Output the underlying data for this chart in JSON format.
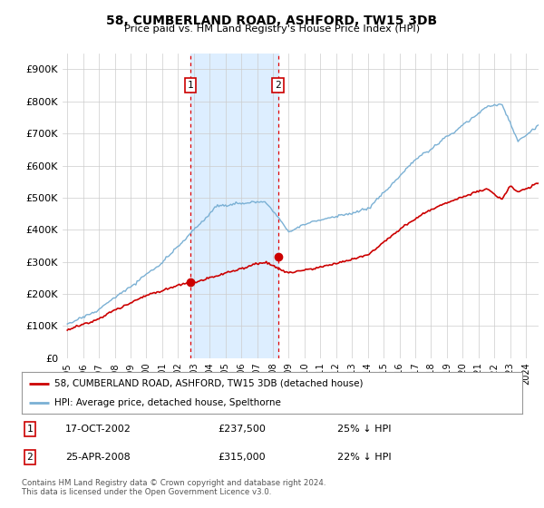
{
  "title": "58, CUMBERLAND ROAD, ASHFORD, TW15 3DB",
  "subtitle": "Price paid vs. HM Land Registry's House Price Index (HPI)",
  "background_color": "#ffffff",
  "plot_bg_color": "#ffffff",
  "grid_color": "#cccccc",
  "sale1": {
    "date_num": 2002.79,
    "price": 237500,
    "label": "1"
  },
  "sale2": {
    "date_num": 2008.32,
    "price": 315000,
    "label": "2"
  },
  "shade_start": 2002.79,
  "shade_end": 2008.32,
  "shade_color": "#ddeeff",
  "red_line_color": "#cc0000",
  "blue_line_color": "#7ab0d4",
  "legend_red_label": "58, CUMBERLAND ROAD, ASHFORD, TW15 3DB (detached house)",
  "legend_blue_label": "HPI: Average price, detached house, Spelthorne",
  "table_rows": [
    {
      "label": "1",
      "date": "17-OCT-2002",
      "price": "£237,500",
      "pct": "25% ↓ HPI"
    },
    {
      "label": "2",
      "date": "25-APR-2008",
      "price": "£315,000",
      "pct": "22% ↓ HPI"
    }
  ],
  "footnote": "Contains HM Land Registry data © Crown copyright and database right 2024.\nThis data is licensed under the Open Government Licence v3.0.",
  "ylim": [
    0,
    950000
  ],
  "yticks": [
    0,
    100000,
    200000,
    300000,
    400000,
    500000,
    600000,
    700000,
    800000,
    900000
  ],
  "ytick_labels": [
    "£0",
    "£100K",
    "£200K",
    "£300K",
    "£400K",
    "£500K",
    "£600K",
    "£700K",
    "£800K",
    "£900K"
  ],
  "xlim_start": 1994.7,
  "xlim_end": 2024.8,
  "xtick_start": 1995,
  "xtick_end": 2025
}
